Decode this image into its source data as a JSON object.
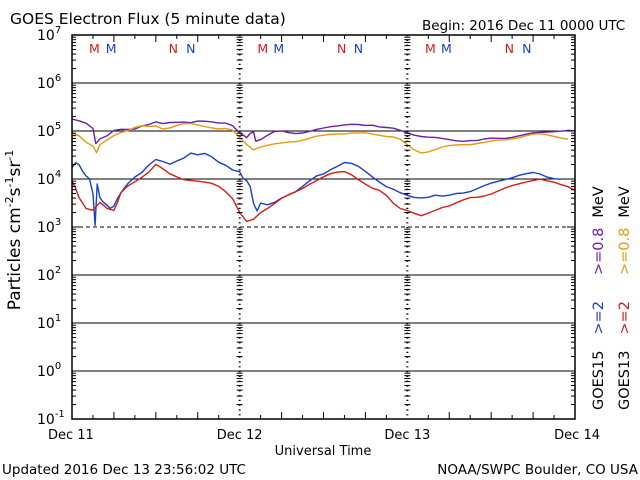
{
  "chart_data": {
    "type": "line",
    "title": "GOES Electron Flux (5 minute data)",
    "begin_label": "Begin: 2016 Dec 11 0000 UTC",
    "xlabel": "Universal Time",
    "ylabel": {
      "base": "Particles cm",
      "exp1": "-2",
      "mid1": "s",
      "exp2": "-1",
      "mid2": "sr",
      "exp3": "-1"
    },
    "y_scale": "log",
    "ylim": [
      -1,
      7
    ],
    "y_ticks": [
      {
        "base": "10",
        "exp": "7",
        "value": 7
      },
      {
        "base": "10",
        "exp": "6",
        "value": 6
      },
      {
        "base": "10",
        "exp": "5",
        "value": 5
      },
      {
        "base": "10",
        "exp": "4",
        "value": 4
      },
      {
        "base": "10",
        "exp": "3",
        "value": 3
      },
      {
        "base": "10",
        "exp": "2",
        "value": 2
      },
      {
        "base": "10",
        "exp": "1",
        "value": 1
      },
      {
        "base": "10",
        "exp": "0",
        "value": 0
      },
      {
        "base": "10",
        "exp": "-1",
        "value": -1
      }
    ],
    "x_range_hours": [
      0,
      72
    ],
    "x_ticks": [
      {
        "label": "Dec 11",
        "hour": 0
      },
      {
        "label": "Dec 12",
        "hour": 24
      },
      {
        "label": "Dec 13",
        "hour": 48
      },
      {
        "label": "Dec 14",
        "hour": 72
      }
    ],
    "gridlines": [
      6,
      5,
      4,
      2,
      1,
      0
    ],
    "threshold_line": 3,
    "markers": [
      {
        "label": "M",
        "hour": 3.2,
        "color": "#d81a1a"
      },
      {
        "label": "M",
        "hour": 5.6,
        "color": "#1a3fc8"
      },
      {
        "label": "N",
        "hour": 14.5,
        "color": "#d81a1a"
      },
      {
        "label": "N",
        "hour": 17.0,
        "color": "#1a3fc8"
      },
      {
        "label": "M",
        "hour": 27.3,
        "color": "#d81a1a"
      },
      {
        "label": "M",
        "hour": 29.6,
        "color": "#1a3fc8"
      },
      {
        "label": "N",
        "hour": 38.6,
        "color": "#d81a1a"
      },
      {
        "label": "N",
        "hour": 41.0,
        "color": "#1a3fc8"
      },
      {
        "label": "M",
        "hour": 51.3,
        "color": "#d81a1a"
      },
      {
        "label": "M",
        "hour": 53.6,
        "color": "#1a3fc8"
      },
      {
        "label": "N",
        "hour": 62.6,
        "color": "#d81a1a"
      },
      {
        "label": "N",
        "hour": 65.1,
        "color": "#1a3fc8"
      }
    ],
    "legend": [
      {
        "text": "GOES15 >=2",
        "color": "#1a3fc8",
        "column": "right"
      },
      {
        "text": "MeV",
        "color": "#000000",
        "column": "right"
      },
      {
        "text": ">=0.8",
        "color": "#6a1fa8",
        "column": "right"
      },
      {
        "text": "GOES13 >=2",
        "color": "#d81a1a",
        "column": "far-right"
      },
      {
        "text": ">=0.8",
        "color": "#e69a12",
        "column": "far-right"
      }
    ],
    "legend_text": {
      "goes15": "GOES15",
      "goes13": "GOES13",
      "ge2": ">=2",
      "ge08": ">=0.8",
      "mev": "MeV"
    },
    "series": [
      {
        "name": "GOES15 >=0.8 MeV",
        "color": "#6a1fa8",
        "hours": [
          0,
          1,
          2,
          3,
          3.4,
          4,
          5,
          6,
          7,
          8,
          9,
          10,
          11,
          12,
          13,
          14,
          15,
          16,
          17,
          18,
          19,
          20,
          21,
          22,
          23,
          24,
          24.5,
          25,
          25.5,
          26,
          26.3,
          27,
          28,
          29,
          30,
          31,
          32,
          33,
          34,
          35,
          36,
          37,
          38,
          39,
          40,
          41,
          42,
          43,
          44,
          45,
          46,
          47,
          48,
          49,
          50,
          51,
          52,
          53,
          54,
          55,
          56,
          57,
          58,
          59,
          60,
          61,
          62,
          63,
          64,
          65,
          66,
          67,
          68,
          69,
          70,
          71,
          72
        ],
        "log_values": [
          5.25,
          5.2,
          5.15,
          5.05,
          4.75,
          4.85,
          4.9,
          5.0,
          5.02,
          5.03,
          5.05,
          5.12,
          5.14,
          5.18,
          5.14,
          5.17,
          5.19,
          5.2,
          5.18,
          5.2,
          5.19,
          5.18,
          5.17,
          5.18,
          5.12,
          4.95,
          4.9,
          4.85,
          4.95,
          5.0,
          4.8,
          4.82,
          4.9,
          4.98,
          5.0,
          4.98,
          4.96,
          4.96,
          4.98,
          5.02,
          5.06,
          5.1,
          5.12,
          5.13,
          5.13,
          5.12,
          5.11,
          5.13,
          5.1,
          5.08,
          5.05,
          5.0,
          4.95,
          4.92,
          4.9,
          4.88,
          4.86,
          4.83,
          4.81,
          4.8,
          4.8,
          4.81,
          4.8,
          4.82,
          4.84,
          4.85,
          4.86,
          4.88,
          4.9,
          4.92,
          4.95,
          4.97,
          4.99,
          5.0,
          5.0,
          5.0,
          4.99
        ]
      },
      {
        "name": "GOES13 >=0.8 MeV",
        "color": "#e69a12",
        "hours": [
          0,
          1,
          2,
          3,
          3.5,
          4,
          5,
          6,
          7,
          8,
          9,
          10,
          11,
          12,
          13,
          14,
          15,
          16,
          17,
          18,
          19,
          20,
          21,
          22,
          23,
          24,
          25,
          26,
          27,
          28,
          29,
          30,
          31,
          32,
          33,
          34,
          35,
          36,
          37,
          38,
          39,
          40,
          41,
          42,
          43,
          44,
          45,
          46,
          47,
          48,
          49,
          50,
          51,
          52,
          53,
          54,
          55,
          56,
          57,
          58,
          59,
          60,
          61,
          62,
          63,
          64,
          65,
          66,
          67,
          68,
          69,
          70,
          71,
          72
        ],
        "log_values": [
          4.95,
          4.9,
          4.78,
          4.7,
          4.55,
          4.7,
          4.8,
          4.9,
          4.98,
          5.02,
          5.08,
          5.1,
          5.08,
          5.1,
          5.05,
          5.08,
          5.12,
          5.15,
          5.14,
          5.12,
          5.1,
          5.08,
          5.05,
          5.05,
          5.0,
          4.85,
          4.72,
          4.62,
          4.68,
          4.7,
          4.72,
          4.74,
          4.77,
          4.79,
          4.82,
          4.85,
          4.88,
          4.9,
          4.93,
          4.95,
          4.95,
          4.96,
          4.95,
          4.95,
          4.93,
          4.92,
          4.9,
          4.88,
          4.82,
          4.7,
          4.6,
          4.55,
          4.58,
          4.62,
          4.66,
          4.68,
          4.7,
          4.72,
          4.73,
          4.75,
          4.76,
          4.78,
          4.8,
          4.82,
          4.85,
          4.87,
          4.9,
          4.92,
          4.93,
          4.92,
          4.9,
          4.87,
          4.83
        ]
      },
      {
        "name": "GOES15 >=2 MeV",
        "color": "#1a3fc8",
        "hours": [
          0,
          0.5,
          1,
          1.5,
          2,
          2.5,
          3,
          3.3,
          3.6,
          4,
          4.5,
          5,
          5.5,
          6,
          6.5,
          7,
          7.5,
          8,
          9,
          10,
          11,
          12,
          13,
          14,
          15,
          16,
          17,
          18,
          19,
          20,
          21,
          22,
          23,
          24,
          24.5,
          25,
          25.5,
          26,
          26.5,
          27,
          28,
          29,
          30,
          31,
          32,
          33,
          34,
          35,
          36,
          37,
          38,
          39,
          40,
          41,
          42,
          43,
          44,
          45,
          46,
          47,
          48,
          49,
          50,
          51,
          52,
          53,
          54,
          55,
          56,
          57,
          58,
          59,
          60,
          61,
          62,
          63,
          64,
          65,
          66,
          67,
          68,
          69,
          70,
          71,
          72
        ],
        "log_values": [
          4.25,
          4.35,
          4.3,
          4.15,
          4.05,
          4.0,
          3.7,
          3.05,
          3.9,
          3.6,
          3.5,
          3.45,
          3.4,
          3.45,
          3.6,
          3.7,
          3.8,
          3.9,
          4.05,
          4.15,
          4.3,
          4.4,
          4.35,
          4.3,
          4.38,
          4.45,
          4.55,
          4.5,
          4.52,
          4.45,
          4.35,
          4.3,
          4.2,
          4.15,
          4.0,
          3.95,
          3.85,
          3.5,
          3.35,
          3.5,
          3.45,
          3.5,
          3.6,
          3.68,
          3.75,
          3.85,
          3.95,
          4.05,
          4.1,
          4.2,
          4.28,
          4.35,
          4.32,
          4.25,
          4.15,
          4.05,
          3.95,
          3.85,
          3.78,
          3.7,
          3.65,
          3.62,
          3.62,
          3.63,
          3.66,
          3.63,
          3.65,
          3.7,
          3.72,
          3.75,
          3.8,
          3.85,
          3.9,
          3.95,
          4.0,
          4.04,
          4.08,
          4.1,
          4.12,
          4.1,
          4.05,
          4.02,
          4.0
        ]
      },
      {
        "name": "GOES13 >=2 MeV",
        "color": "#d81a1a",
        "hours": [
          0,
          0.5,
          1,
          1.5,
          2,
          2.5,
          3,
          3.5,
          4,
          4.5,
          5,
          5.5,
          6,
          6.5,
          7,
          8,
          9,
          10,
          11,
          12,
          13,
          14,
          15,
          16,
          17,
          18,
          19,
          20,
          21,
          22,
          23,
          24,
          25,
          26,
          27,
          28,
          29,
          30,
          31,
          32,
          33,
          34,
          35,
          36,
          37,
          38,
          39,
          40,
          41,
          42,
          43,
          44,
          45,
          46,
          47,
          48,
          49,
          50,
          51,
          52,
          53,
          54,
          55,
          56,
          57,
          58,
          59,
          60,
          61,
          62,
          63,
          64,
          65,
          66,
          67,
          68,
          69,
          70,
          71,
          72
        ],
        "log_values": [
          3.95,
          3.8,
          3.6,
          3.5,
          3.4,
          3.38,
          3.35,
          3.42,
          3.5,
          3.45,
          3.4,
          3.38,
          3.35,
          3.5,
          3.7,
          3.85,
          3.95,
          4.05,
          4.15,
          4.3,
          4.2,
          4.1,
          4.05,
          4.0,
          3.98,
          3.95,
          3.92,
          3.9,
          3.85,
          3.75,
          3.6,
          3.3,
          3.1,
          3.15,
          3.3,
          3.4,
          3.5,
          3.6,
          3.66,
          3.72,
          3.8,
          3.9,
          3.98,
          4.05,
          4.1,
          4.13,
          4.15,
          4.1,
          4.0,
          3.9,
          3.8,
          3.75,
          3.65,
          3.5,
          3.4,
          3.35,
          3.28,
          3.22,
          3.28,
          3.35,
          3.42,
          3.45,
          3.5,
          3.55,
          3.6,
          3.62,
          3.66,
          3.7,
          3.75,
          3.8,
          3.85,
          3.9,
          3.95,
          3.98,
          4.0,
          3.95,
          3.92,
          3.88,
          3.85,
          3.78,
          3.7,
          3.65,
          3.6
        ]
      }
    ]
  },
  "footer": {
    "updated": "Updated 2016 Dec 13 23:56:02 UTC",
    "credit": "NOAA/SWPC Boulder, CO USA"
  }
}
